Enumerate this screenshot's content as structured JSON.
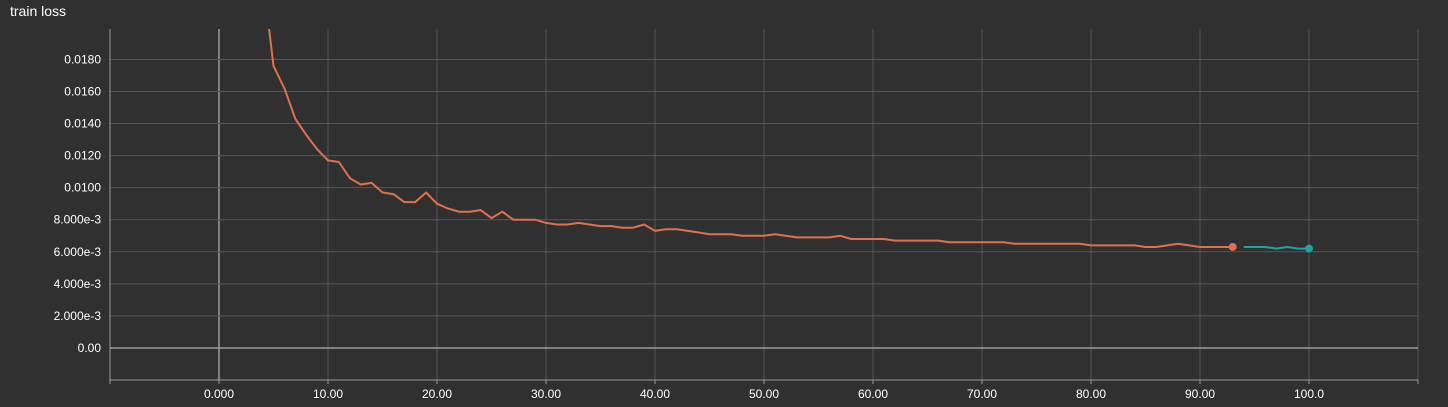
{
  "title": "train loss",
  "colors": {
    "background": "#303030",
    "grid": "#555555",
    "axis": "#9a9a9a",
    "series_orange": "#e0704d",
    "series_teal": "#1ca3a3"
  },
  "chart_data": {
    "type": "line",
    "title": "train loss",
    "xlabel": "",
    "ylabel": "",
    "xlim": [
      -10,
      110
    ],
    "ylim": [
      -0.002,
      0.0199
    ],
    "x_ticks": [
      0,
      10,
      20,
      30,
      40,
      50,
      60,
      70,
      80,
      90,
      100
    ],
    "x_tick_labels": [
      "0.000",
      "10.00",
      "20.00",
      "30.00",
      "40.00",
      "50.00",
      "60.00",
      "70.00",
      "80.00",
      "90.00",
      "100.0"
    ],
    "y_ticks": [
      0,
      0.002,
      0.004,
      0.006,
      0.008,
      0.01,
      0.012,
      0.014,
      0.016,
      0.018
    ],
    "y_tick_labels": [
      "0.00",
      "2.000e-3",
      "4.000e-3",
      "6.000e-3",
      "8.000e-3",
      "0.0100",
      "0.0120",
      "0.0140",
      "0.0160",
      "0.0180"
    ],
    "grid": true,
    "series": [
      {
        "color": "#e0704d",
        "end_marker": true,
        "x": [
          4.6,
          5,
          6,
          7,
          8,
          9,
          10,
          11,
          12,
          13,
          14,
          15,
          16,
          17,
          18,
          19,
          20,
          21,
          22,
          23,
          24,
          25,
          26,
          27,
          28,
          29,
          30,
          31,
          32,
          33,
          34,
          35,
          36,
          37,
          38,
          39,
          40,
          41,
          42,
          43,
          44,
          45,
          46,
          47,
          48,
          49,
          50,
          51,
          52,
          53,
          54,
          55,
          56,
          57,
          58,
          59,
          60,
          61,
          62,
          63,
          64,
          65,
          66,
          67,
          68,
          69,
          70,
          71,
          72,
          73,
          74,
          75,
          76,
          77,
          78,
          79,
          80,
          81,
          82,
          83,
          84,
          85,
          86,
          87,
          88,
          89,
          90,
          91,
          92,
          93
        ],
        "y": [
          0.0199,
          0.0176,
          0.0162,
          0.0143,
          0.0133,
          0.0124,
          0.0117,
          0.0116,
          0.0106,
          0.0102,
          0.0103,
          0.0097,
          0.0096,
          0.0091,
          0.0091,
          0.0097,
          0.009,
          0.0087,
          0.0085,
          0.0085,
          0.0086,
          0.0081,
          0.0085,
          0.008,
          0.008,
          0.008,
          0.0078,
          0.0077,
          0.0077,
          0.0078,
          0.0077,
          0.0076,
          0.0076,
          0.0075,
          0.0075,
          0.0077,
          0.0073,
          0.0074,
          0.0074,
          0.0073,
          0.0072,
          0.0071,
          0.0071,
          0.0071,
          0.007,
          0.007,
          0.007,
          0.0071,
          0.007,
          0.0069,
          0.0069,
          0.0069,
          0.0069,
          0.007,
          0.0068,
          0.0068,
          0.0068,
          0.0068,
          0.0067,
          0.0067,
          0.0067,
          0.0067,
          0.0067,
          0.0066,
          0.0066,
          0.0066,
          0.0066,
          0.0066,
          0.0066,
          0.0065,
          0.0065,
          0.0065,
          0.0065,
          0.0065,
          0.0065,
          0.0065,
          0.0064,
          0.0064,
          0.0064,
          0.0064,
          0.0064,
          0.0063,
          0.0063,
          0.0064,
          0.0065,
          0.0064,
          0.0063,
          0.0063,
          0.0063,
          0.0063
        ]
      },
      {
        "color": "#1ca3a3",
        "end_marker": true,
        "x": [
          94,
          95,
          96,
          97,
          98,
          99,
          100
        ],
        "y": [
          0.0063,
          0.0063,
          0.0063,
          0.0062,
          0.0063,
          0.0062,
          0.0062
        ]
      }
    ]
  }
}
